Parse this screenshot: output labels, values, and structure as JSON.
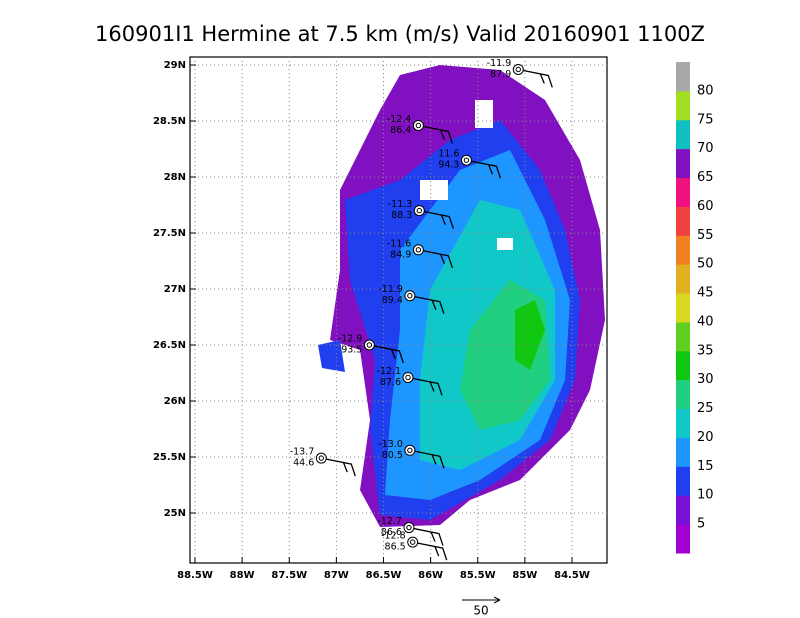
{
  "title": "160901I1 Hermine at 7.5 km (m/s) Valid 20160901 1100Z",
  "lon_ticks": [
    {
      "value": -88.5,
      "label": "88.5W"
    },
    {
      "value": -88,
      "label": "88W"
    },
    {
      "value": -87.5,
      "label": "87.5W"
    },
    {
      "value": -87,
      "label": "87W"
    },
    {
      "value": -86.5,
      "label": "86.5W"
    },
    {
      "value": -86,
      "label": "86W"
    },
    {
      "value": -85.5,
      "label": "85.5W"
    },
    {
      "value": -85,
      "label": "85W"
    },
    {
      "value": -84.5,
      "label": "84.5W"
    }
  ],
  "lat_ticks": [
    {
      "value": 25,
      "label": "25N"
    },
    {
      "value": 25.5,
      "label": "25.5N"
    },
    {
      "value": 26,
      "label": "26N"
    },
    {
      "value": 26.5,
      "label": "26.5N"
    },
    {
      "value": 27,
      "label": "27N"
    },
    {
      "value": 27.5,
      "label": "27.5N"
    },
    {
      "value": 28,
      "label": "28N"
    },
    {
      "value": 28.5,
      "label": "28.5N"
    },
    {
      "value": 29,
      "label": "29N"
    }
  ],
  "colorbar": {
    "levels": [
      5,
      10,
      15,
      20,
      25,
      30,
      35,
      40,
      45,
      50,
      55,
      60,
      65,
      70,
      75,
      80
    ],
    "colors": [
      "#a000d0",
      "#7a10d8",
      "#2040f0",
      "#1e96ff",
      "#10c8c8",
      "#20d080",
      "#10c810",
      "#60d020",
      "#d8d820",
      "#e0b020",
      "#f08020",
      "#f04040",
      "#f01080",
      "#8010c0",
      "#10c0c0",
      "#a0e020",
      "#a8a8a8"
    ]
  },
  "sondes": [
    {
      "lon": -85.07,
      "lat": 28.96,
      "top": "-11.9",
      "bottom": "87.9"
    },
    {
      "lon": -86.13,
      "lat": 28.46,
      "top": "-12.4",
      "bottom": "86.4"
    },
    {
      "lon": -85.62,
      "lat": 28.15,
      "top": "11.6",
      "bottom": "94.3"
    },
    {
      "lon": -86.12,
      "lat": 27.7,
      "top": "-11.3",
      "bottom": "88.3"
    },
    {
      "lon": -86.13,
      "lat": 27.35,
      "top": "-11.6",
      "bottom": "84.9"
    },
    {
      "lon": -86.22,
      "lat": 26.94,
      "top": "-11.9",
      "bottom": "89.4"
    },
    {
      "lon": -86.65,
      "lat": 26.5,
      "top": "-12.9",
      "bottom": "93.5"
    },
    {
      "lon": -86.24,
      "lat": 26.21,
      "top": "-12.1",
      "bottom": "87.6"
    },
    {
      "lon": -87.16,
      "lat": 25.49,
      "top": "-13.7",
      "bottom": "44.6"
    },
    {
      "lon": -86.22,
      "lat": 25.56,
      "top": "-13.0",
      "bottom": "80.5"
    },
    {
      "lon": -86.23,
      "lat": 24.87,
      "top": "-12.7",
      "bottom": "86.6"
    },
    {
      "lon": -86.19,
      "lat": 24.74,
      "top": "-12.8",
      "bottom": "86.5"
    }
  ],
  "vector_scale": "50"
}
